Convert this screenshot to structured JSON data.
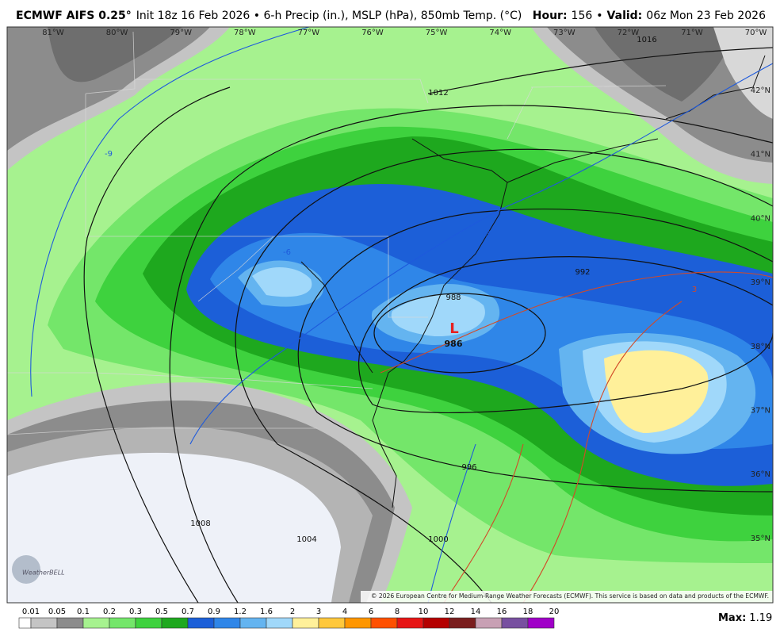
{
  "header": {
    "model": "ECMWF AIFS 0.25°",
    "description": "Init 18z 16 Feb 2026 • 6-h Precip (in.), MSLP (hPa), 850mb Temp. (°C)",
    "hour_label": "Hour:",
    "hour": 156,
    "separator": "•",
    "valid_label": "Valid:",
    "valid": "06z Mon 23 Feb 2026"
  },
  "map": {
    "longitudes": [
      "81°W",
      "80°W",
      "79°W",
      "78°W",
      "77°W",
      "76°W",
      "75°W",
      "74°W",
      "73°W",
      "72°W",
      "71°W",
      "70°W"
    ],
    "latitudes": [
      "42°N",
      "41°N",
      "40°N",
      "39°N",
      "38°N",
      "37°N",
      "36°N",
      "35°N"
    ],
    "isobar_labels": [
      "1016",
      "1012",
      "992",
      "988",
      "1008",
      "1004",
      "1000",
      "996"
    ],
    "low_marker": "L",
    "low_pressure": "986",
    "temp_labels": [
      "-9",
      "-6",
      "-3",
      "3"
    ],
    "copyright": "© 2026 European Centre for Medium-Range Weather Forecasts (ECMWF). This service is based on data and products of the ECMWF.",
    "logo": "WeatherBELL"
  },
  "legend": {
    "labels": [
      0.01,
      0.05,
      0.1,
      0.2,
      0.3,
      0.5,
      0.7,
      0.9,
      1.2,
      1.6,
      2,
      3,
      4,
      6,
      8,
      10,
      12,
      14,
      16,
      18,
      20
    ],
    "colors": [
      "#ffffff",
      "#c4c4c4",
      "#8c8c8c",
      "#a6f28f",
      "#74e66a",
      "#3ed23e",
      "#1ea81e",
      "#1c5fd8",
      "#2f86e8",
      "#64b4f0",
      "#a0d8fa",
      "#fff09a",
      "#ffc83c",
      "#ff9600",
      "#ff5000",
      "#e61414",
      "#b40000",
      "#7a1e1e",
      "#c8a0b4",
      "#7850a0",
      "#a000c8"
    ],
    "max_label": "Max:",
    "max": 1.19
  }
}
